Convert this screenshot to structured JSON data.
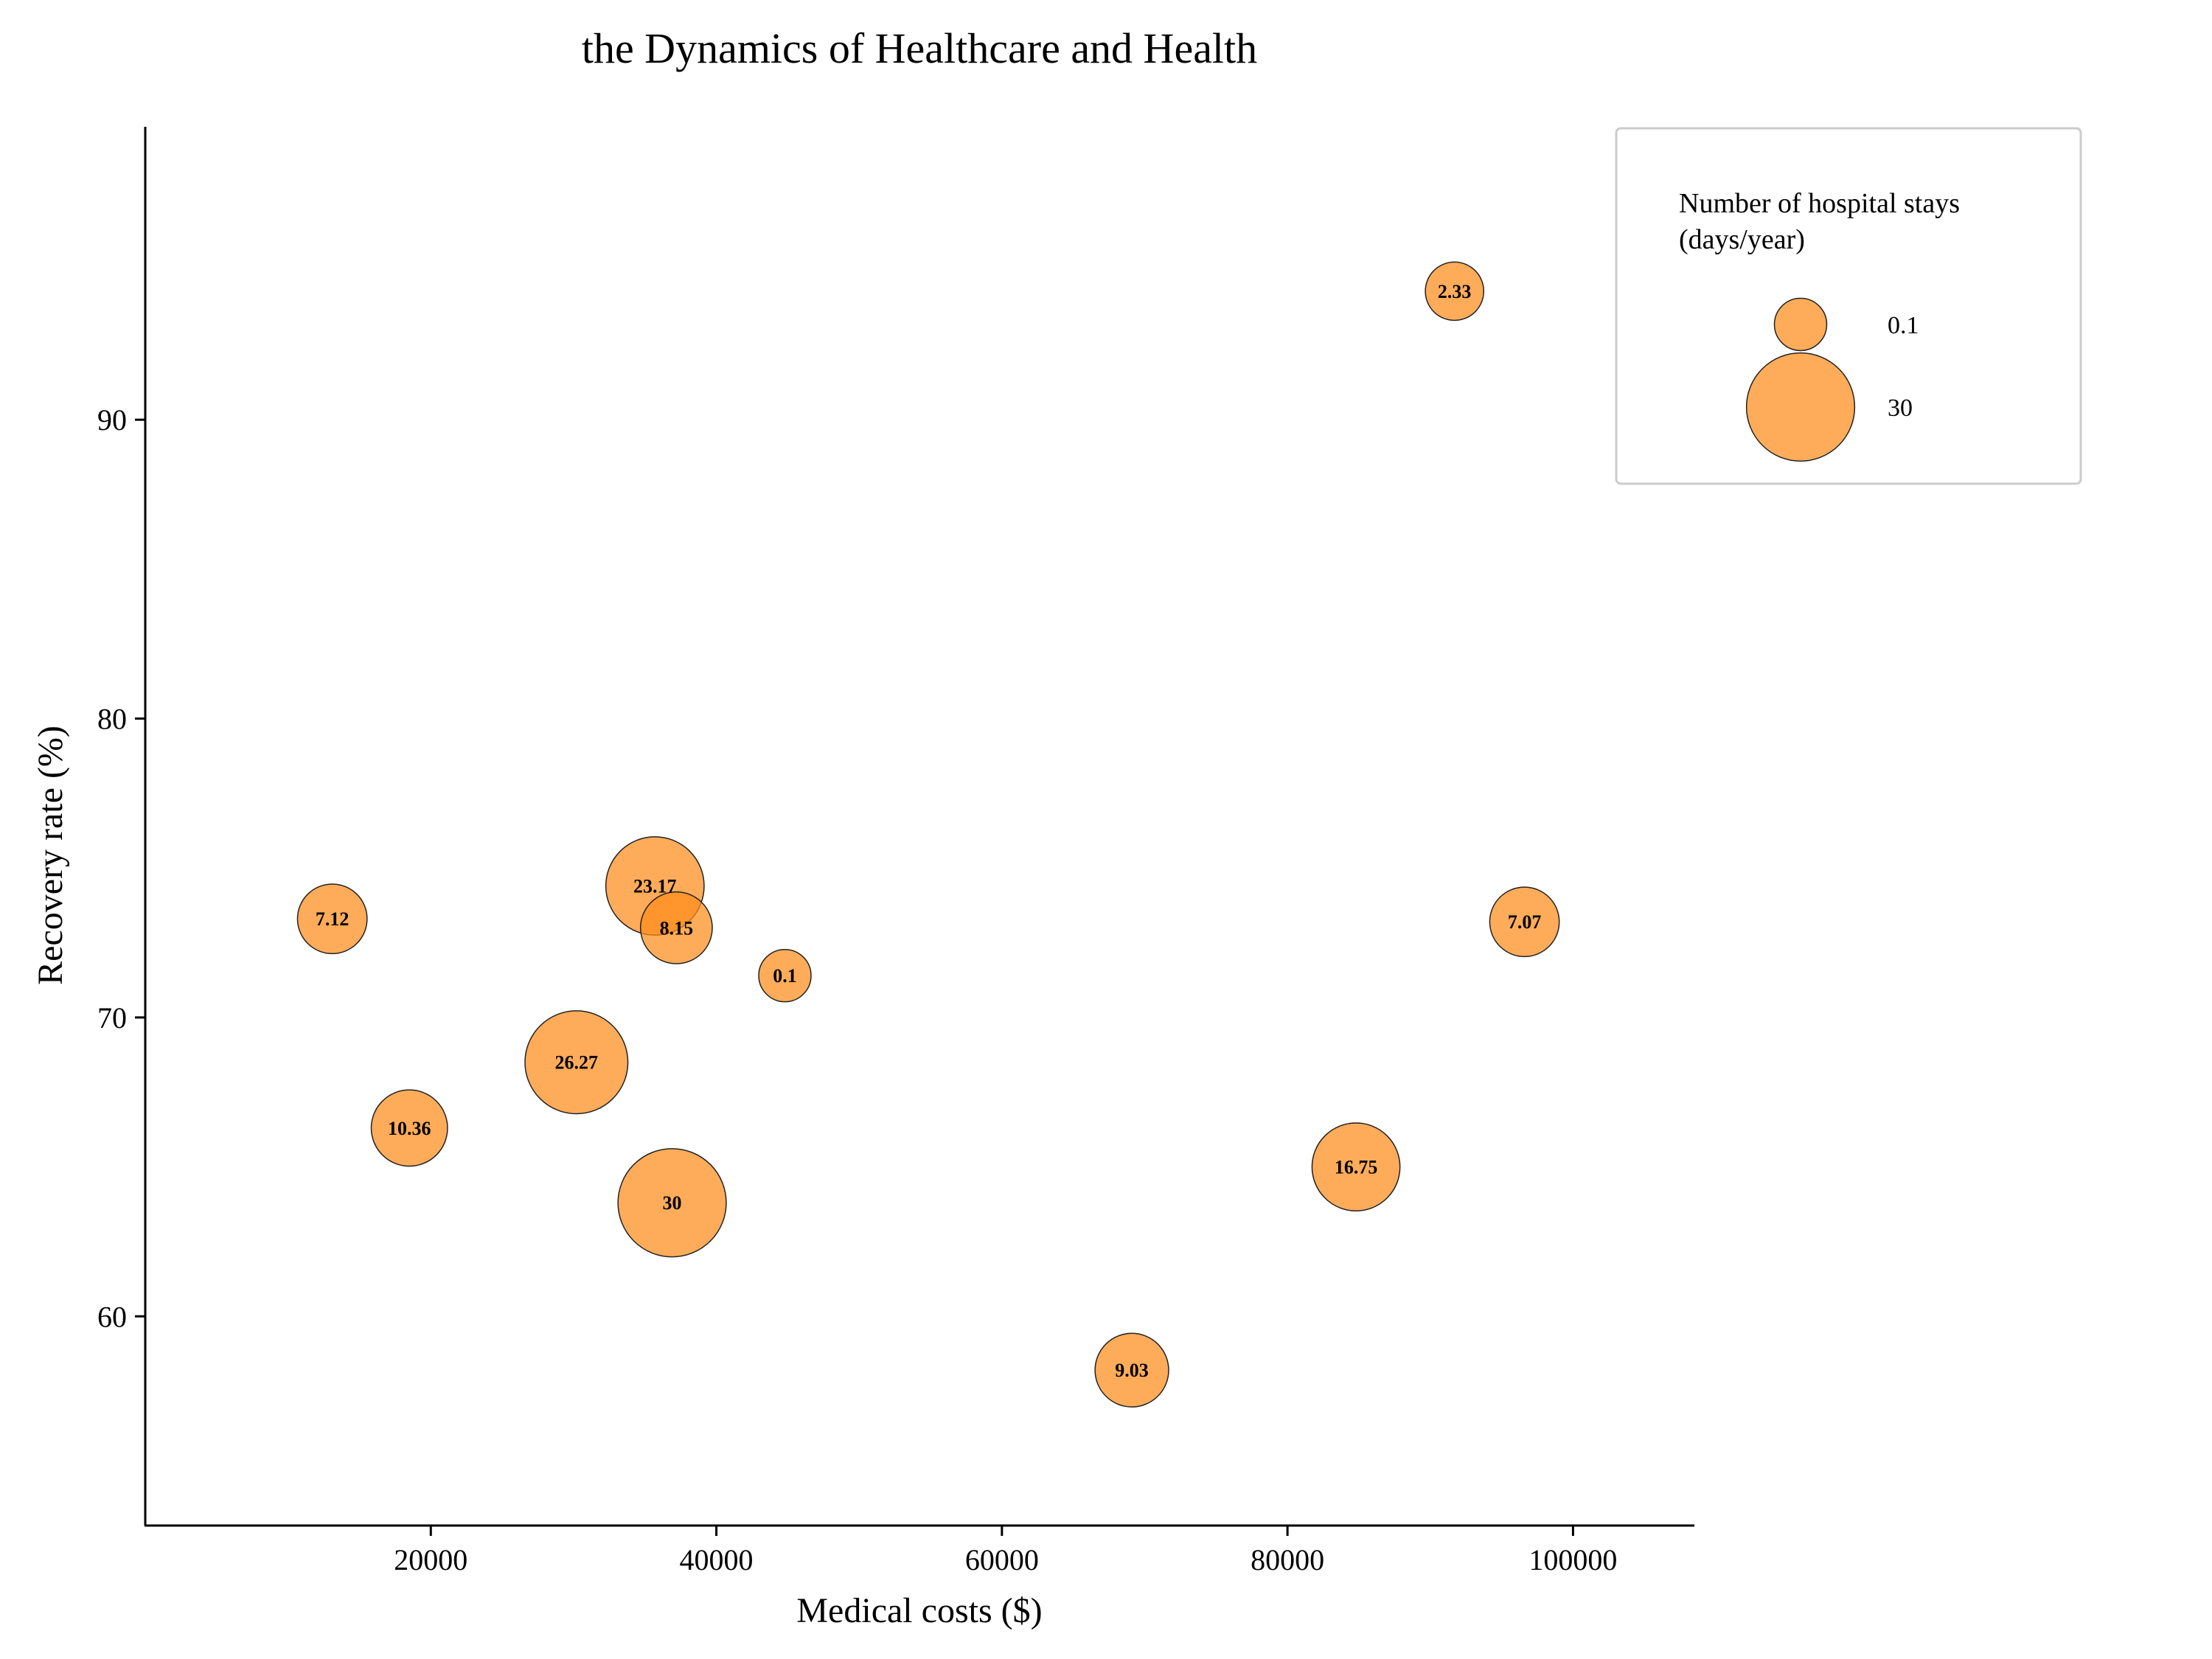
{
  "chart_data": {
    "type": "scatter",
    "title": "the Dynamics of Healthcare and Health",
    "xlabel": "Medical costs ($)",
    "ylabel": "Recovery rate (%)",
    "xlim": [
      0,
      108500
    ],
    "ylim": [
      53.0,
      99.8
    ],
    "xticks": [
      20000,
      40000,
      60000,
      80000,
      100000
    ],
    "yticks": [
      60,
      70,
      80,
      90
    ],
    "grid": false,
    "bubble_color": "#ff8c1a",
    "size_variable": "Number of hospital stays (days/year)",
    "points": [
      {
        "x": 91700,
        "y": 94.3,
        "size": 2.33,
        "label": "2.33"
      },
      {
        "x": 13100,
        "y": 73.3,
        "size": 7.12,
        "label": "7.12"
      },
      {
        "x": 35700,
        "y": 74.4,
        "size": 23.17,
        "label": "23.17"
      },
      {
        "x": 37200,
        "y": 73.0,
        "size": 8.15,
        "label": "8.15"
      },
      {
        "x": 44800,
        "y": 71.4,
        "size": 0.1,
        "label": "0.1"
      },
      {
        "x": 96600,
        "y": 73.2,
        "size": 7.07,
        "label": "7.07"
      },
      {
        "x": 30200,
        "y": 68.5,
        "size": 26.27,
        "label": "26.27"
      },
      {
        "x": 18500,
        "y": 66.3,
        "size": 10.36,
        "label": "10.36"
      },
      {
        "x": 36900,
        "y": 63.8,
        "size": 30,
        "label": "30"
      },
      {
        "x": 84800,
        "y": 65.0,
        "size": 16.75,
        "label": "16.75"
      },
      {
        "x": 69100,
        "y": 58.2,
        "size": 9.03,
        "label": "9.03"
      }
    ],
    "legend": {
      "position": "upper-right",
      "title": "Number of hospital stays\n(days/year)",
      "entries": [
        {
          "size": 0.1,
          "label": "0.1"
        },
        {
          "size": 30,
          "label": "30"
        }
      ]
    }
  }
}
